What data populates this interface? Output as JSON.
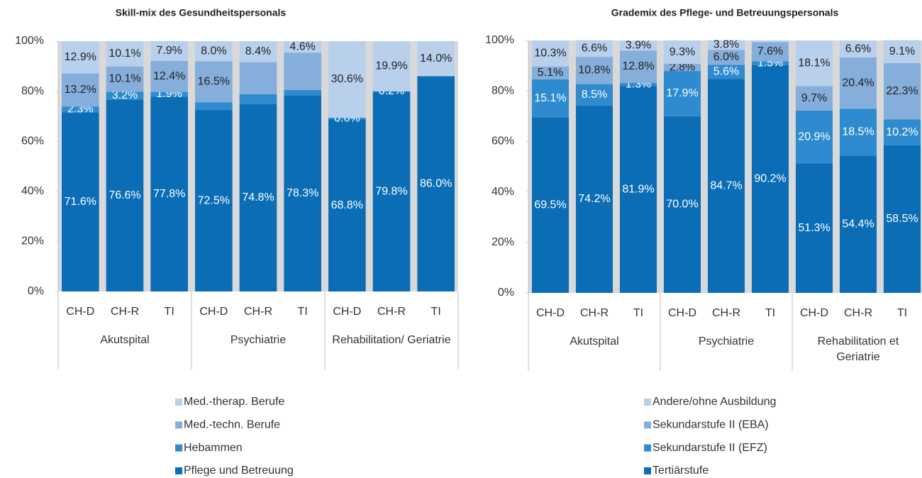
{
  "chart_data": [
    {
      "type": "stacked-bar",
      "title": "Skill-mix des Gesundheitspersonals",
      "categories": [
        "CH-D",
        "CH-R",
        "TI",
        "CH-D",
        "CH-R",
        "TI",
        "CH-D",
        "CH-R",
        "TI"
      ],
      "groups": [
        "Akutspital",
        "Psychiatrie",
        "Rehabilitation/ Geriatrie"
      ],
      "ylim": [
        0,
        100
      ],
      "yticks": [
        {
          "value": 0,
          "label": "0%"
        },
        {
          "value": 20,
          "label": "20%"
        },
        {
          "value": 40,
          "label": "40%"
        },
        {
          "value": 60,
          "label": "60%"
        },
        {
          "value": 80,
          "label": "80%"
        },
        {
          "value": 100,
          "label": "100%"
        }
      ],
      "series": [
        {
          "name": "Pflege und Betreuung",
          "color": "#0b6db6",
          "values": [
            71.6,
            76.6,
            77.8,
            72.5,
            74.8,
            78.3,
            68.8,
            79.8,
            86.0
          ],
          "value_labels": [
            "71.6%",
            "76.6%",
            "77.8%",
            "72.5%",
            "74.8%",
            "78.3%",
            "68.8%",
            "79.8%",
            "86.0%"
          ]
        },
        {
          "name": "Hebammen",
          "color": "#2f8bcf",
          "values": [
            2.3,
            3.2,
            1.9,
            3.0,
            4.0,
            2.2,
            0.6,
            0.2,
            0
          ],
          "value_labels": [
            "2.3%",
            "3.2%",
            "1.9%",
            null,
            null,
            null,
            "0.6%",
            "0.2%",
            null
          ]
        },
        {
          "name": "Med.-techn. Berufe",
          "color": "#86aedb",
          "values": [
            13.2,
            10.1,
            12.4,
            16.5,
            12.8,
            14.9,
            0,
            0,
            0
          ],
          "value_labels": [
            "13.2%",
            "10.1%",
            "12.4%",
            "16.5%",
            null,
            null,
            null,
            null,
            null
          ]
        },
        {
          "name": "Med.-therap. Berufe",
          "color": "#b9d0ed",
          "values": [
            12.9,
            10.1,
            7.9,
            8.0,
            8.4,
            4.6,
            30.6,
            19.9,
            14.0
          ],
          "value_labels": [
            "12.9%",
            "10.1%",
            "7.9%",
            "8.0%",
            "8.4%",
            "4.6%",
            "30.6%",
            "19.9%",
            "14.0%"
          ]
        }
      ]
    },
    {
      "type": "stacked-bar",
      "title": "Grademix des Pflege- und Betreuungspersonals",
      "categories": [
        "CH-D",
        "CH-R",
        "TI",
        "CH-D",
        "CH-R",
        "TI",
        "CH-D",
        "CH-R",
        "TI"
      ],
      "groups": [
        "Akutspital",
        "Psychiatrie",
        "Rehabilitation et Geriatrie"
      ],
      "ylim": [
        0,
        100
      ],
      "yticks": [
        {
          "value": 0,
          "label": "0%"
        },
        {
          "value": 20,
          "label": "20%"
        },
        {
          "value": 40,
          "label": "40%"
        },
        {
          "value": 60,
          "label": "60%"
        },
        {
          "value": 80,
          "label": "80%"
        },
        {
          "value": 100,
          "label": "100%"
        }
      ],
      "series": [
        {
          "name": "Tertiärstufe",
          "color": "#0b6db6",
          "values": [
            69.5,
            74.2,
            81.9,
            70.0,
            84.7,
            90.2,
            51.3,
            54.4,
            58.5
          ],
          "value_labels": [
            "69.5%",
            "74.2%",
            "81.9%",
            "70.0%",
            "84.7%",
            "90.2%",
            "51.3%",
            "54.4%",
            "58.5%"
          ]
        },
        {
          "name": "Sekundarstufe II (EFZ)",
          "color": "#2f8bcf",
          "values": [
            15.1,
            8.5,
            1.3,
            17.9,
            5.6,
            1.5,
            20.9,
            18.5,
            10.2
          ],
          "value_labels": [
            "15.1%",
            "8.5%",
            "1.3%",
            "17.9%",
            "5.6%",
            "1.5%",
            "20.9%",
            "18.5%",
            "10.2%"
          ]
        },
        {
          "name": "Sekundarstufe II (EBA)",
          "color": "#86aedb",
          "values": [
            5.1,
            10.8,
            12.8,
            2.8,
            6.0,
            7.6,
            9.7,
            20.4,
            22.3
          ],
          "value_labels": [
            "5.1%",
            "10.8%",
            "12.8%",
            "2.8%",
            "6.0%",
            "7.6%",
            "9.7%",
            "20.4%",
            "22.3%"
          ]
        },
        {
          "name": "Andere/ohne Ausbildung",
          "color": "#b9d0ed",
          "values": [
            10.3,
            6.6,
            3.9,
            9.3,
            3.8,
            0.7,
            18.1,
            6.6,
            9.1
          ],
          "value_labels": [
            "10.3%",
            "6.6%",
            "3.9%",
            "9.3%",
            "3.8%",
            null,
            "18.1%",
            "6.6%",
            "9.1%"
          ]
        }
      ]
    }
  ]
}
